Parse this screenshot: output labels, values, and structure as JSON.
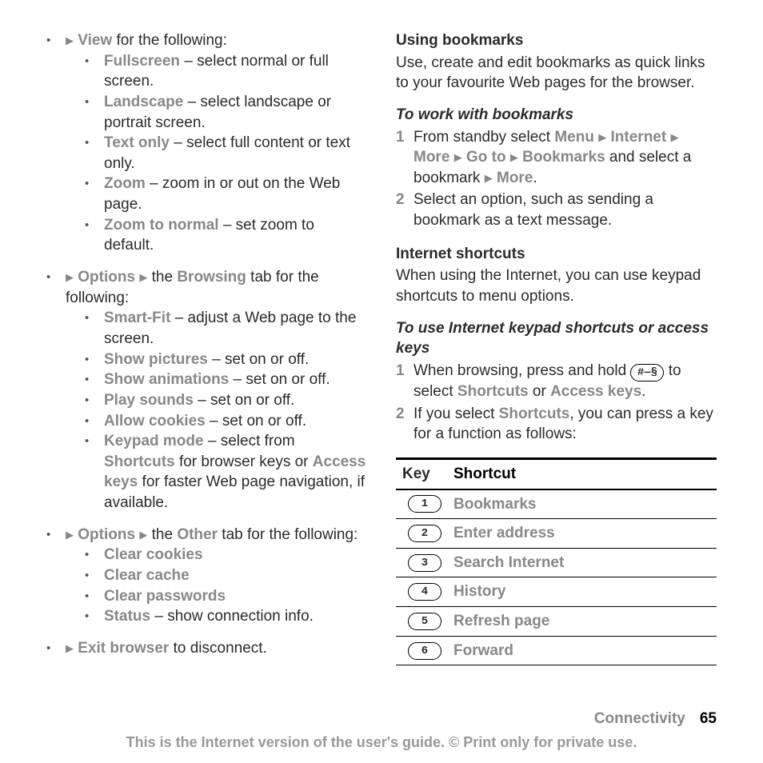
{
  "colors": {
    "text": "#2b2b2b",
    "menu_gray": "#888888",
    "footer_gray": "#999999",
    "border": "#000000",
    "background": "#ffffff"
  },
  "typography": {
    "body_fontsize_pt": 14,
    "footer_fontsize_pt": 13,
    "line_height": 1.35,
    "font_family": "Arial"
  },
  "left": {
    "top": {
      "lead_menu": "View",
      "lead_tail": " for the following:",
      "items": [
        {
          "label": "Fullscreen",
          "desc": " – select normal or full screen."
        },
        {
          "label": "Landscape",
          "desc": " – select landscape or portrait screen."
        },
        {
          "label": "Text only",
          "desc": " – select full content or text only."
        },
        {
          "label": "Zoom",
          "desc": " – zoom in or out on the Web page."
        },
        {
          "label": "Zoom to normal",
          "desc": " – set zoom to default."
        }
      ]
    },
    "browsing": {
      "pre": "Options",
      "mid": " the ",
      "tab": "Browsing",
      "tail": " tab for the following:",
      "items": [
        {
          "label": "Smart-Fit",
          "desc": " – adjust a Web page to the screen."
        },
        {
          "label": "Show pictures",
          "desc": " – set on or off."
        },
        {
          "label": "Show animations",
          "desc": " – set on or off."
        },
        {
          "label": "Play sounds",
          "desc": " – set on or off."
        },
        {
          "label": "Allow cookies",
          "desc": " – set on or off."
        },
        {
          "label": "Keypad mode",
          "desc_pre": " – select from ",
          "sub1": "Shortcuts",
          "desc_mid": " for browser keys or ",
          "sub2": "Access keys",
          "desc_post": " for faster Web page navigation, if available."
        }
      ]
    },
    "other": {
      "pre": "Options",
      "mid": " the ",
      "tab": "Other",
      "tail": " tab for the following:",
      "items": [
        {
          "label": "Clear cookies"
        },
        {
          "label": "Clear cache"
        },
        {
          "label": "Clear passwords"
        },
        {
          "label": "Status",
          "desc": " – show connection info."
        }
      ]
    },
    "exit": {
      "label": "Exit browser",
      "tail": " to disconnect."
    }
  },
  "right": {
    "bookmarks": {
      "heading": "Using bookmarks",
      "para": "Use, create and edit bookmarks as quick links to your favourite Web pages for the browser."
    },
    "work_bookmarks": {
      "heading": "To work with bookmarks",
      "step1_pre": "From standby select ",
      "m1": "Menu",
      "m2": "Internet",
      "m3": "More",
      "m4": "Go to",
      "m5": "Bookmarks",
      "step1_mid": " and select a bookmark ",
      "m6": "More",
      "step1_end": ".",
      "step2": "Select an option, such as sending a bookmark as a text message."
    },
    "shortcuts": {
      "heading": "Internet shortcuts",
      "para": "When using the Internet, you can use keypad shortcuts to menu options."
    },
    "use_shortcuts": {
      "heading": "To use Internet keypad shortcuts or access keys",
      "step1_pre": "When browsing, press and hold ",
      "key_glyph": "#‒§",
      "step1_mid": " to select ",
      "opt1": "Shortcuts",
      "step1_or": " or ",
      "opt2": "Access keys",
      "step1_end": ".",
      "step2_pre": "If you select ",
      "step2_opt": "Shortcuts",
      "step2_post": ", you can press a key for a function as follows:"
    },
    "table": {
      "col_key": "Key",
      "col_shortcut": "Shortcut",
      "rows": [
        {
          "key": "1",
          "label": "Bookmarks"
        },
        {
          "key": "2",
          "label": "Enter address"
        },
        {
          "key": "3",
          "label": "Search Internet"
        },
        {
          "key": "4",
          "label": "History"
        },
        {
          "key": "5",
          "label": "Refresh page"
        },
        {
          "key": "6",
          "label": "Forward"
        }
      ]
    }
  },
  "footer": {
    "section": "Connectivity",
    "page": "65",
    "notice": "This is the Internet version of the user's guide. © Print only for private use."
  }
}
